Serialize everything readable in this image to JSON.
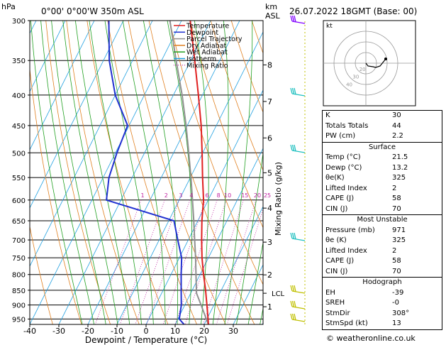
{
  "header": {
    "hpa_label": "hPa",
    "location": "0°00' 0°00'W 350m ASL",
    "km_label": "km",
    "asl_label": "ASL",
    "datetime": "26.07.2022 18GMT (Base: 00)"
  },
  "legend": [
    {
      "label": "Temperature",
      "color": "#e02020",
      "style": "solid"
    },
    {
      "label": "Dewpoint",
      "color": "#2030d0",
      "style": "solid"
    },
    {
      "label": "Parcel Trajectory",
      "color": "#909090",
      "style": "solid"
    },
    {
      "label": "Dry Adiabat",
      "color": "#e08020",
      "style": "solid"
    },
    {
      "label": "Wet Adiabat",
      "color": "#20a020",
      "style": "solid"
    },
    {
      "label": "Isotherm",
      "color": "#20a0e0",
      "style": "solid"
    },
    {
      "label": "Mixing Ratio",
      "color": "#c020a0",
      "style": "dotted"
    }
  ],
  "chart_data": {
    "type": "skewt",
    "xlabel": "Dewpoint / Temperature (°C)",
    "ylabel_right": "Mixing Ratio (g/kg)",
    "ylabel_left": "hPa",
    "temp_ticks": [
      -40,
      -30,
      -20,
      -10,
      0,
      10,
      20,
      30
    ],
    "pressure_ticks": [
      300,
      350,
      400,
      450,
      500,
      550,
      600,
      650,
      700,
      750,
      800,
      850,
      900,
      950
    ],
    "km_ticks": [
      {
        "km": "1",
        "p": 906
      },
      {
        "km": "2",
        "p": 801
      },
      {
        "km": "3",
        "p": 706
      },
      {
        "km": "4",
        "p": 619
      },
      {
        "km": "5",
        "p": 540
      },
      {
        "km": "6",
        "p": 472
      },
      {
        "km": "7",
        "p": 410
      },
      {
        "km": "8",
        "p": 356
      }
    ],
    "lcl": {
      "label": "LCL",
      "p": 860
    },
    "mixing_ratio_labels": [
      "1",
      "2",
      "3",
      "4",
      "6",
      "8",
      "10",
      "15",
      "20",
      "25"
    ],
    "temperature": [
      {
        "p": 971,
        "t": 21.5
      },
      {
        "p": 950,
        "t": 20.4
      },
      {
        "p": 900,
        "t": 17.6
      },
      {
        "p": 850,
        "t": 14.6
      },
      {
        "p": 800,
        "t": 11.2
      },
      {
        "p": 750,
        "t": 7.8
      },
      {
        "p": 700,
        "t": 4.6
      },
      {
        "p": 650,
        "t": 1.4
      },
      {
        "p": 600,
        "t": -1.6
      },
      {
        "p": 550,
        "t": -5.8
      },
      {
        "p": 500,
        "t": -10.2
      },
      {
        "p": 450,
        "t": -15.2
      },
      {
        "p": 400,
        "t": -21.4
      },
      {
        "p": 350,
        "t": -28.6
      },
      {
        "p": 300,
        "t": -37.0
      }
    ],
    "dewpoint": [
      {
        "p": 971,
        "t": 13.2
      },
      {
        "p": 950,
        "t": 10.5
      },
      {
        "p": 900,
        "t": 8.8
      },
      {
        "p": 850,
        "t": 6.2
      },
      {
        "p": 800,
        "t": 3.5
      },
      {
        "p": 750,
        "t": 0.8
      },
      {
        "p": 700,
        "t": -3.6
      },
      {
        "p": 650,
        "t": -8.2
      },
      {
        "p": 600,
        "t": -35.0
      },
      {
        "p": 550,
        "t": -38.0
      },
      {
        "p": 500,
        "t": -39.5
      },
      {
        "p": 450,
        "t": -40.5
      },
      {
        "p": 400,
        "t": -50.0
      },
      {
        "p": 350,
        "t": -58.0
      },
      {
        "p": 300,
        "t": -65.0
      }
    ],
    "parcel": [
      {
        "p": 971,
        "t": 21.5
      },
      {
        "p": 900,
        "t": 15.6
      },
      {
        "p": 860,
        "t": 12.0
      },
      {
        "p": 800,
        "t": 8.6
      },
      {
        "p": 750,
        "t": 5.6
      },
      {
        "p": 700,
        "t": 2.2
      },
      {
        "p": 650,
        "t": -1.4
      },
      {
        "p": 600,
        "t": -5.4
      },
      {
        "p": 550,
        "t": -9.8
      },
      {
        "p": 500,
        "t": -14.8
      },
      {
        "p": 450,
        "t": -20.4
      },
      {
        "p": 400,
        "t": -27.0
      },
      {
        "p": 350,
        "t": -35.0
      },
      {
        "p": 300,
        "t": -44.0
      }
    ]
  },
  "hodograph": {
    "title": "kt",
    "ring_labels": [
      "40",
      "30",
      "20"
    ]
  },
  "indices": {
    "top": [
      {
        "label": "K",
        "value": "30"
      },
      {
        "label": "Totals Totals",
        "value": "44"
      },
      {
        "label": "PW (cm)",
        "value": "2.2"
      }
    ],
    "surface": {
      "title": "Surface",
      "rows": [
        {
          "label": "Temp (°C)",
          "value": "21.5"
        },
        {
          "label": "Dewp (°C)",
          "value": "13.2"
        },
        {
          "label": "θe(K)",
          "value": "325"
        },
        {
          "label": "Lifted Index",
          "value": "2"
        },
        {
          "label": "CAPE (J)",
          "value": "58"
        },
        {
          "label": "CIN (J)",
          "value": "70"
        }
      ]
    },
    "unstable": {
      "title": "Most Unstable",
      "rows": [
        {
          "label": "Pressure (mb)",
          "value": "971"
        },
        {
          "label": "θe (K)",
          "value": "325"
        },
        {
          "label": "Lifted Index",
          "value": "2"
        },
        {
          "label": "CAPE (J)",
          "value": "58"
        },
        {
          "label": "CIN (J)",
          "value": "70"
        }
      ]
    },
    "hodograph": {
      "title": "Hodograph",
      "rows": [
        {
          "label": "EH",
          "value": "-39"
        },
        {
          "label": "SREH",
          "value": "-0"
        },
        {
          "label": "StmDir",
          "value": "308°"
        },
        {
          "label": "StmSpd (kt)",
          "value": "13"
        }
      ]
    }
  },
  "footer": "© weatheronline.co.uk"
}
